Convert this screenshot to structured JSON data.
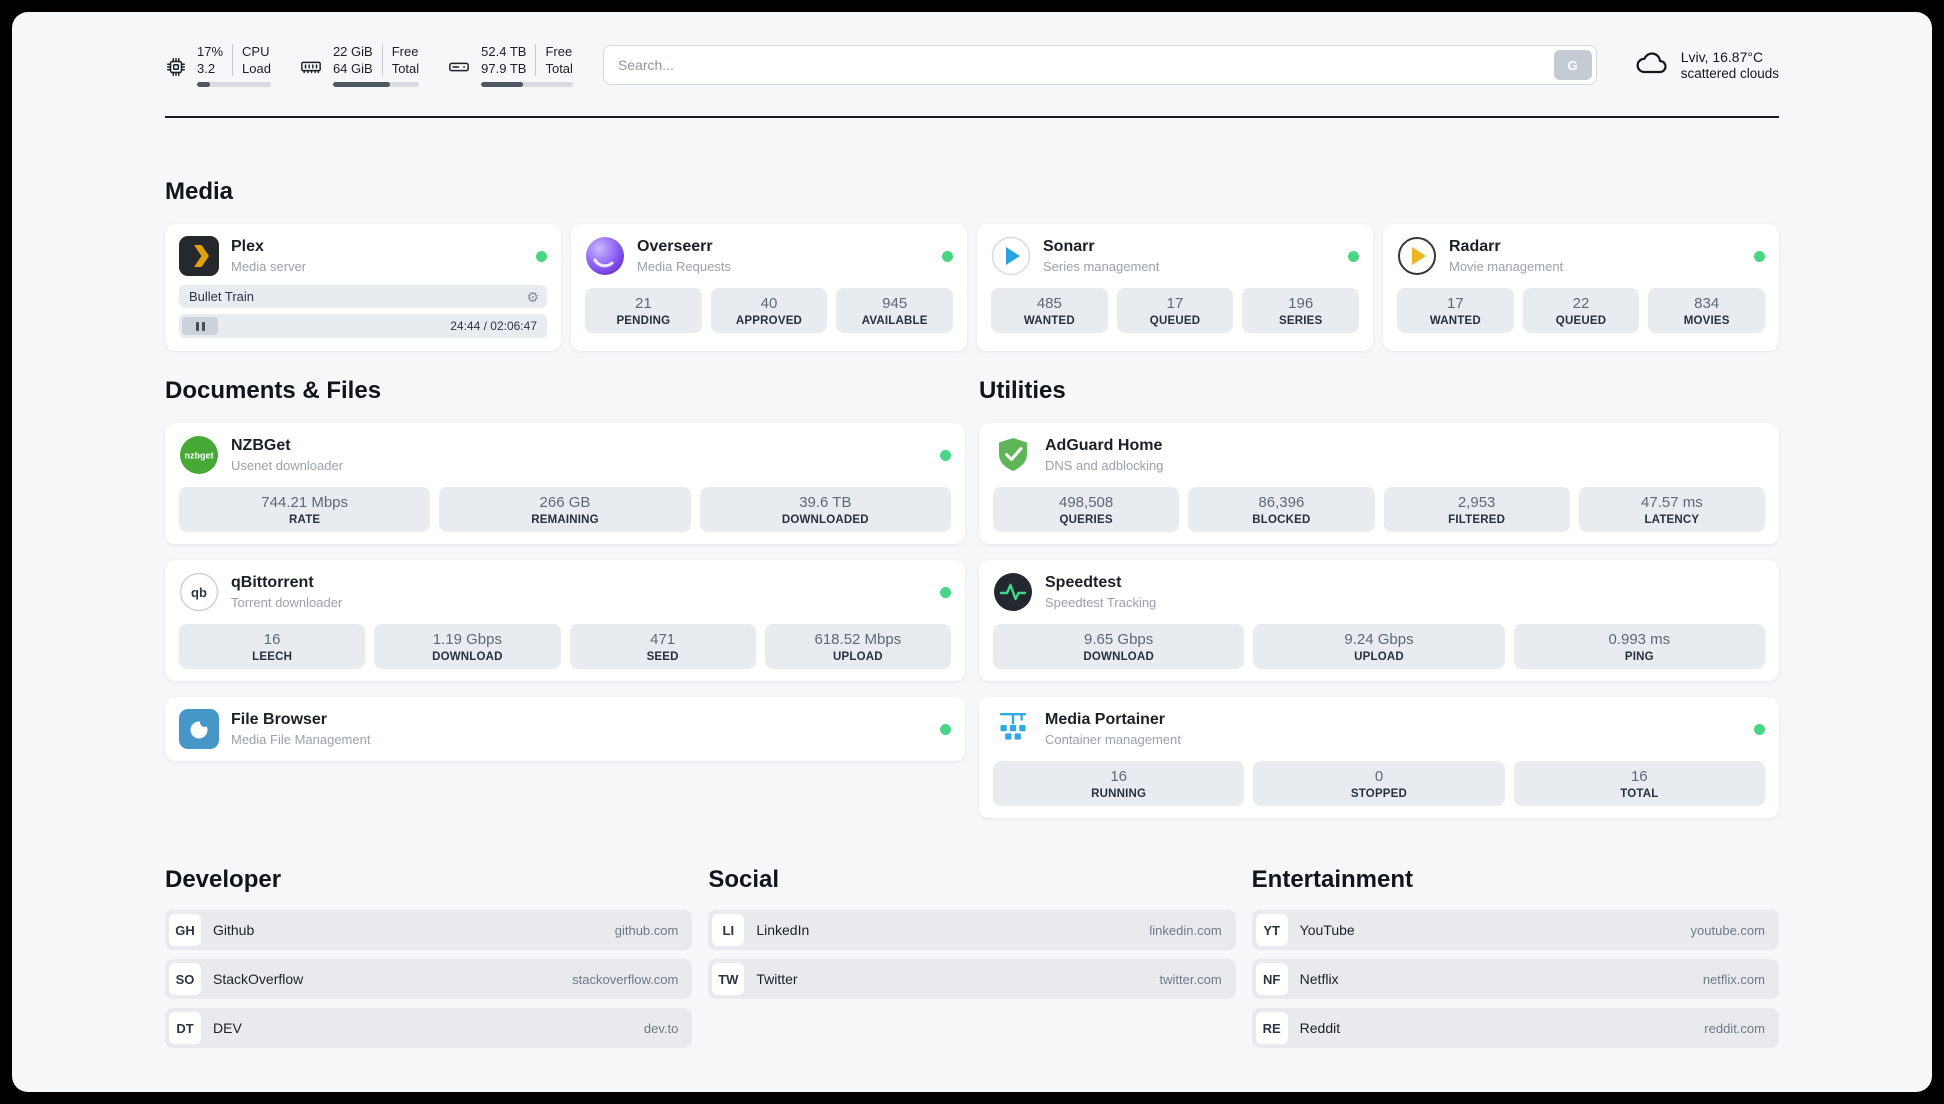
{
  "icons": {
    "gear": "⚙"
  },
  "header": {
    "cpu": {
      "usage": "17%",
      "load": "3.2",
      "label_top": "CPU",
      "label_bottom": "Load",
      "percent": 17
    },
    "ram": {
      "free": "22 GiB",
      "total": "64 GiB",
      "label_top": "Free",
      "label_bottom": "Total",
      "percent": 66
    },
    "disk": {
      "free": "52.4 TB",
      "total": "97.9 TB",
      "label_top": "Free",
      "label_bottom": "Total",
      "percent": 46
    },
    "search": {
      "placeholder": "Search...",
      "engine_button": "G"
    },
    "weather": {
      "location": "Lviv, 16.87°C",
      "condition": "scattered clouds"
    }
  },
  "media": {
    "title": "Media",
    "plex": {
      "name": "Plex",
      "subtitle": "Media server",
      "now_playing": "Bullet Train",
      "time": "24:44 / 02:06:47"
    },
    "overseerr": {
      "name": "Overseerr",
      "subtitle": "Media Requests",
      "stats": [
        {
          "value": "21",
          "label": "PENDING"
        },
        {
          "value": "40",
          "label": "APPROVED"
        },
        {
          "value": "945",
          "label": "AVAILABLE"
        }
      ]
    },
    "sonarr": {
      "name": "Sonarr",
      "subtitle": "Series management",
      "stats": [
        {
          "value": "485",
          "label": "WANTED"
        },
        {
          "value": "17",
          "label": "QUEUED"
        },
        {
          "value": "196",
          "label": "SERIES"
        }
      ]
    },
    "radarr": {
      "name": "Radarr",
      "subtitle": "Movie management",
      "stats": [
        {
          "value": "17",
          "label": "WANTED"
        },
        {
          "value": "22",
          "label": "QUEUED"
        },
        {
          "value": "834",
          "label": "MOVIES"
        }
      ]
    }
  },
  "documents": {
    "title": "Documents & Files",
    "nzbget": {
      "name": "NZBGet",
      "subtitle": "Usenet downloader",
      "icon_text": "nzbget",
      "stats": [
        {
          "value": "744.21 Mbps",
          "label": "RATE"
        },
        {
          "value": "266 GB",
          "label": "REMAINING"
        },
        {
          "value": "39.6 TB",
          "label": "DOWNLOADED"
        }
      ]
    },
    "qbittorrent": {
      "name": "qBittorrent",
      "subtitle": "Torrent downloader",
      "icon_text": "qb",
      "stats": [
        {
          "value": "16",
          "label": "LEECH"
        },
        {
          "value": "1.19 Gbps",
          "label": "DOWNLOAD"
        },
        {
          "value": "471",
          "label": "SEED"
        },
        {
          "value": "618.52 Mbps",
          "label": "UPLOAD"
        }
      ]
    },
    "filebrowser": {
      "name": "File Browser",
      "subtitle": "Media File Management"
    }
  },
  "utilities": {
    "title": "Utilities",
    "adguard": {
      "name": "AdGuard Home",
      "subtitle": "DNS and adblocking",
      "stats": [
        {
          "value": "498,508",
          "label": "QUERIES"
        },
        {
          "value": "86,396",
          "label": "BLOCKED"
        },
        {
          "value": "2,953",
          "label": "FILTERED"
        },
        {
          "value": "47.57 ms",
          "label": "LATENCY"
        }
      ]
    },
    "speedtest": {
      "name": "Speedtest",
      "subtitle": "Speedtest Tracking",
      "stats": [
        {
          "value": "9.65 Gbps",
          "label": "DOWNLOAD"
        },
        {
          "value": "9.24 Gbps",
          "label": "UPLOAD"
        },
        {
          "value": "0.993 ms",
          "label": "PING"
        }
      ]
    },
    "portainer": {
      "name": "Media Portainer",
      "subtitle": "Container management",
      "stats": [
        {
          "value": "16",
          "label": "RUNNING"
        },
        {
          "value": "0",
          "label": "STOPPED"
        },
        {
          "value": "16",
          "label": "TOTAL"
        }
      ]
    }
  },
  "links": {
    "developer": {
      "title": "Developer",
      "items": [
        {
          "abbr": "GH",
          "name": "Github",
          "domain": "github.com"
        },
        {
          "abbr": "SO",
          "name": "StackOverflow",
          "domain": "stackoverflow.com"
        },
        {
          "abbr": "DT",
          "name": "DEV",
          "domain": "dev.to"
        }
      ]
    },
    "social": {
      "title": "Social",
      "items": [
        {
          "abbr": "LI",
          "name": "LinkedIn",
          "domain": "linkedin.com"
        },
        {
          "abbr": "TW",
          "name": "Twitter",
          "domain": "twitter.com"
        }
      ]
    },
    "entertainment": {
      "title": "Entertainment",
      "items": [
        {
          "abbr": "YT",
          "name": "YouTube",
          "domain": "youtube.com"
        },
        {
          "abbr": "NF",
          "name": "Netflix",
          "domain": "netflix.com"
        },
        {
          "abbr": "RE",
          "name": "Reddit",
          "domain": "reddit.com"
        }
      ]
    }
  }
}
